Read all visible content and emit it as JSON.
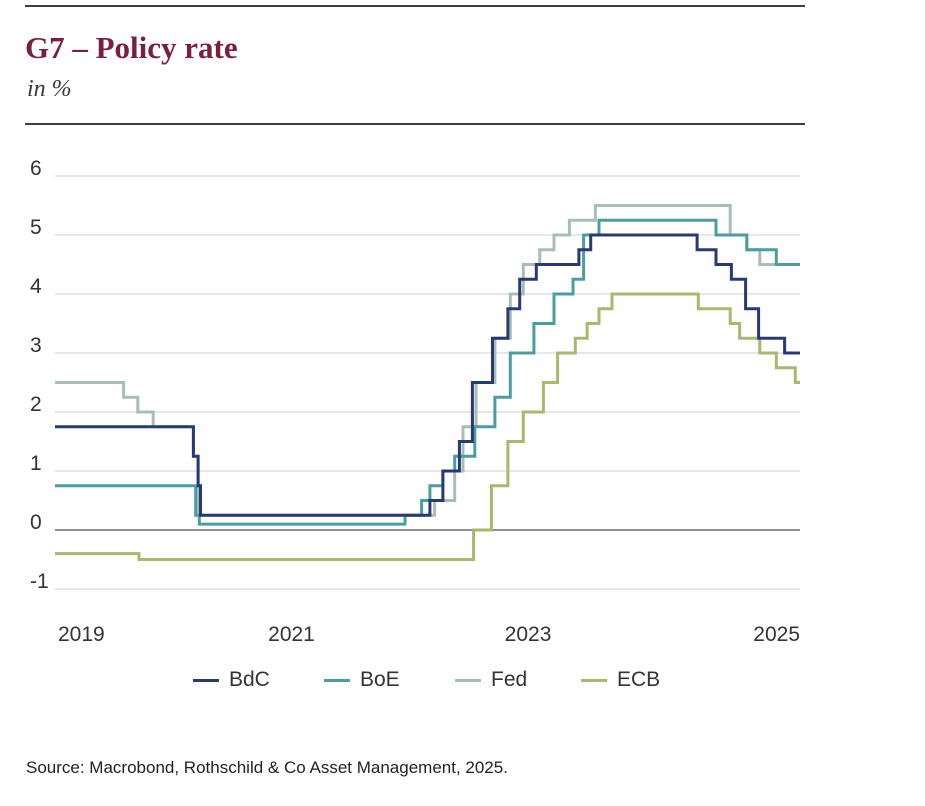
{
  "header": {
    "title": "G7 – Policy rate",
    "subtitle": "in %"
  },
  "footer": {
    "source": "Source: Macrobond, Rothschild & Co Asset Management, 2025."
  },
  "chart_data": {
    "type": "line",
    "step": true,
    "title": "G7 – Policy rate",
    "subtitle": "in %",
    "xlabel": "",
    "ylabel": "",
    "xlim": [
      2019.0,
      2025.3
    ],
    "ylim": [
      -1,
      6
    ],
    "yticks": [
      6,
      5,
      4,
      3,
      2,
      1,
      0,
      -1
    ],
    "ytick_labels": [
      "6",
      "5",
      "4",
      "3",
      "2",
      "1",
      "0",
      "-1"
    ],
    "xticks": [
      2019,
      2021,
      2023,
      2025
    ],
    "xtick_labels": [
      "2019",
      "2021",
      "2023",
      "2025"
    ],
    "grid": true,
    "legend_position": "bottom",
    "series": [
      {
        "name": "BdC",
        "color": "#283a73",
        "points": [
          [
            2019.0,
            1.75
          ],
          [
            2020.17,
            1.25
          ],
          [
            2020.21,
            0.75
          ],
          [
            2020.23,
            0.25
          ],
          [
            2022.17,
            0.5
          ],
          [
            2022.28,
            1.0
          ],
          [
            2022.42,
            1.5
          ],
          [
            2022.53,
            2.5
          ],
          [
            2022.7,
            3.25
          ],
          [
            2022.83,
            3.75
          ],
          [
            2022.93,
            4.25
          ],
          [
            2023.07,
            4.5
          ],
          [
            2023.43,
            4.75
          ],
          [
            2023.53,
            5.0
          ],
          [
            2024.43,
            4.75
          ],
          [
            2024.59,
            4.5
          ],
          [
            2024.72,
            4.25
          ],
          [
            2024.84,
            3.75
          ],
          [
            2024.95,
            3.25
          ],
          [
            2025.17,
            3.0
          ],
          [
            2025.3,
            3.0
          ]
        ]
      },
      {
        "name": "BoE",
        "color": "#4a9ea1",
        "points": [
          [
            2019.0,
            0.75
          ],
          [
            2020.19,
            0.25
          ],
          [
            2020.22,
            0.1
          ],
          [
            2021.96,
            0.25
          ],
          [
            2022.1,
            0.5
          ],
          [
            2022.17,
            0.75
          ],
          [
            2022.28,
            1.0
          ],
          [
            2022.38,
            1.25
          ],
          [
            2022.55,
            1.75
          ],
          [
            2022.72,
            2.25
          ],
          [
            2022.85,
            3.0
          ],
          [
            2023.05,
            3.5
          ],
          [
            2023.22,
            4.0
          ],
          [
            2023.38,
            4.25
          ],
          [
            2023.47,
            5.0
          ],
          [
            2023.6,
            5.25
          ],
          [
            2024.59,
            5.0
          ],
          [
            2024.85,
            4.75
          ],
          [
            2025.1,
            4.5
          ],
          [
            2025.3,
            4.5
          ]
        ]
      },
      {
        "name": "Fed",
        "color": "#a9bdb8",
        "points": [
          [
            2019.0,
            2.5
          ],
          [
            2019.58,
            2.25
          ],
          [
            2019.7,
            2.0
          ],
          [
            2019.83,
            1.75
          ],
          [
            2020.17,
            1.25
          ],
          [
            2020.21,
            0.25
          ],
          [
            2022.21,
            0.5
          ],
          [
            2022.38,
            1.0
          ],
          [
            2022.45,
            1.75
          ],
          [
            2022.56,
            2.5
          ],
          [
            2022.72,
            3.25
          ],
          [
            2022.85,
            4.0
          ],
          [
            2022.96,
            4.5
          ],
          [
            2023.1,
            4.75
          ],
          [
            2023.22,
            5.0
          ],
          [
            2023.35,
            5.25
          ],
          [
            2023.57,
            5.5
          ],
          [
            2024.71,
            5.0
          ],
          [
            2024.85,
            4.75
          ],
          [
            2024.96,
            4.5
          ],
          [
            2025.3,
            4.5
          ]
        ]
      },
      {
        "name": "ECB",
        "color": "#a8b86e",
        "points": [
          [
            2019.0,
            -0.4
          ],
          [
            2019.71,
            -0.5
          ],
          [
            2022.54,
            0.0
          ],
          [
            2022.69,
            0.75
          ],
          [
            2022.83,
            1.5
          ],
          [
            2022.96,
            2.0
          ],
          [
            2023.13,
            2.5
          ],
          [
            2023.25,
            3.0
          ],
          [
            2023.4,
            3.25
          ],
          [
            2023.5,
            3.5
          ],
          [
            2023.6,
            3.75
          ],
          [
            2023.71,
            4.0
          ],
          [
            2024.44,
            3.75
          ],
          [
            2024.71,
            3.5
          ],
          [
            2024.79,
            3.25
          ],
          [
            2024.96,
            3.0
          ],
          [
            2025.1,
            2.75
          ],
          [
            2025.26,
            2.5
          ],
          [
            2025.3,
            2.5
          ]
        ]
      }
    ]
  }
}
